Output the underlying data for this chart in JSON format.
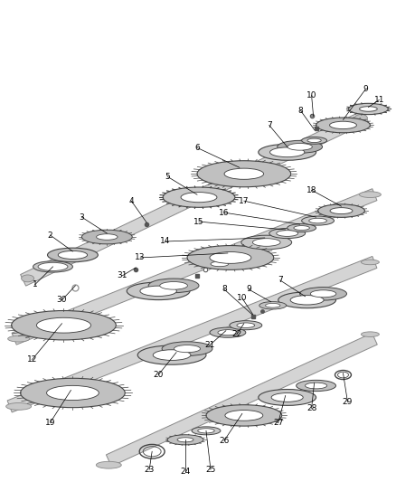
{
  "background_color": "#ffffff",
  "line_color": "#333333",
  "fig_width": 4.38,
  "fig_height": 5.33,
  "dpi": 100
}
